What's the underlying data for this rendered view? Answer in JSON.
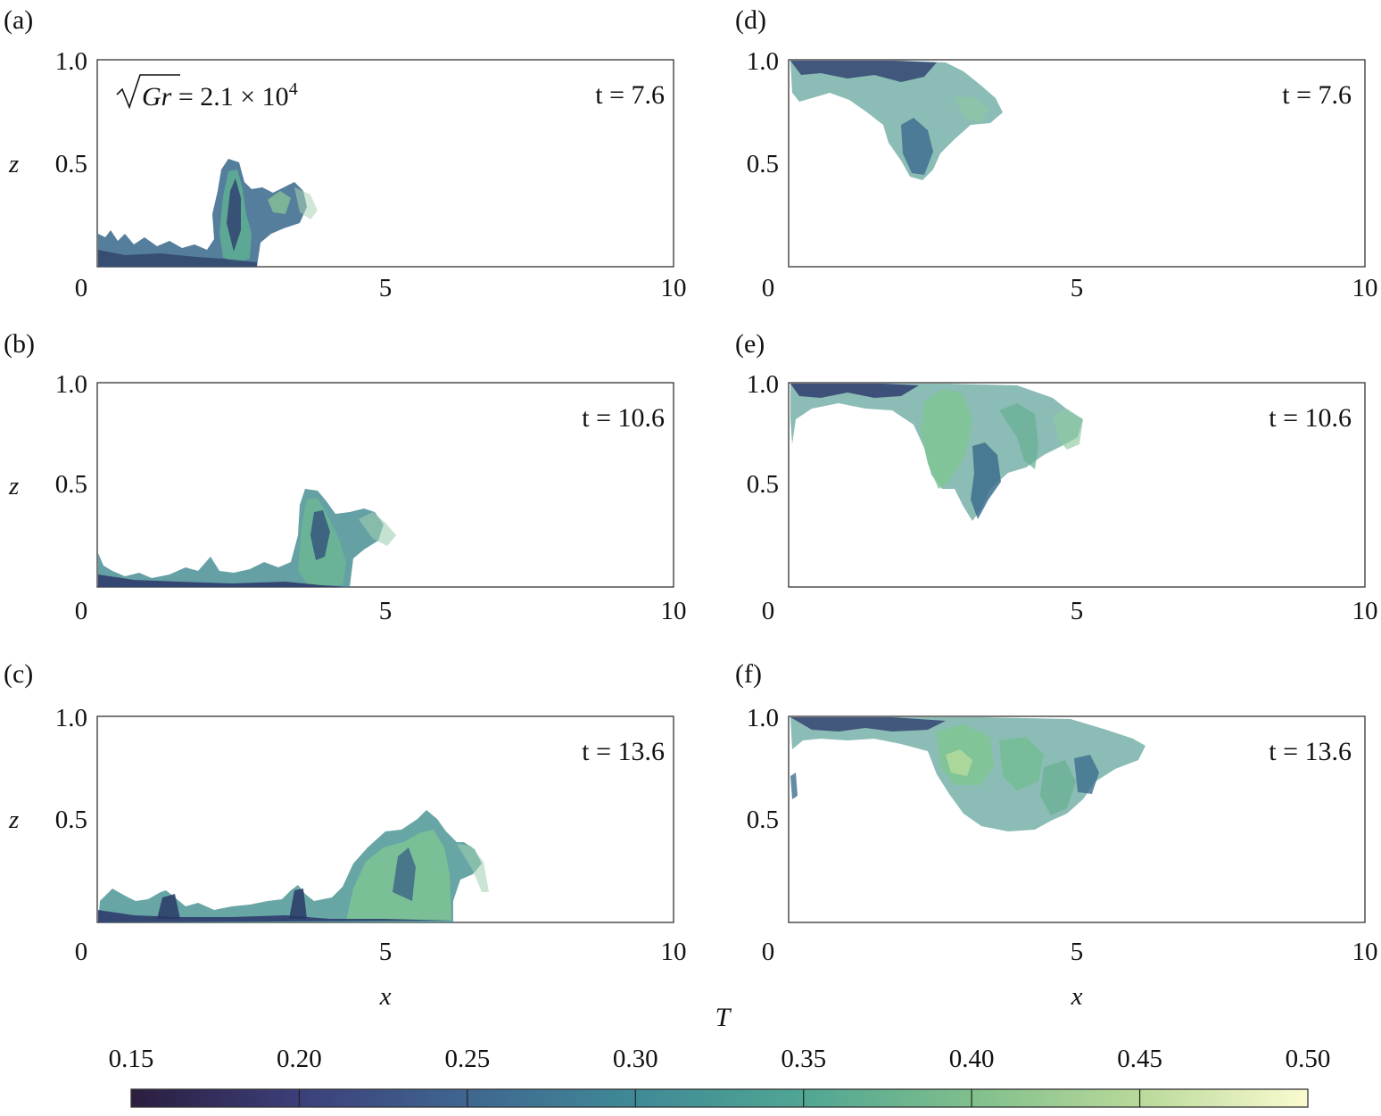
{
  "figure": {
    "colorbar": {
      "title": "T",
      "ticks": [
        "0.15",
        "0.20",
        "0.25",
        "0.30",
        "0.35",
        "0.40",
        "0.45",
        "0.50"
      ],
      "colormap_stops": [
        "#2b1e3e",
        "#3b3f7a",
        "#3f6690",
        "#3f8a96",
        "#4fa693",
        "#7fbf8c",
        "#b9d99a",
        "#fbfbd0"
      ]
    },
    "gr_annotation": {
      "sqrt_symbol": "√",
      "symbol": "Gr",
      "text": " = 2.1 × 10",
      "exponent": "4"
    },
    "panels": [
      {
        "label": "(a)",
        "letter": "a",
        "time": "t = 7.6"
      },
      {
        "label": "(b)",
        "letter": "b",
        "time": "t = 10.6"
      },
      {
        "label": "(c)",
        "letter": "c",
        "time": "t = 13.6"
      },
      {
        "label": "(d)",
        "letter": "d",
        "time": "t = 7.6"
      },
      {
        "label": "(e)",
        "letter": "e",
        "time": "t = 10.6"
      },
      {
        "label": "(f)",
        "letter": "f",
        "time": "t = 13.6"
      }
    ]
  },
  "chart_data": {
    "type": "heatmap",
    "description_quantity": "T",
    "xlabel": "x",
    "ylabel": "z",
    "xlim": [
      0,
      10
    ],
    "ylim": [
      0,
      1.0
    ],
    "x_ticks": [
      "0",
      "5",
      "10"
    ],
    "y_ticks": [
      "0.5",
      "1.0"
    ],
    "color_range": [
      0.15,
      0.5
    ],
    "panels": [
      {
        "id": "a",
        "time": 7.6,
        "location": "bottom",
        "front_x": 3.9,
        "max_z": 0.52
      },
      {
        "id": "b",
        "time": 10.6,
        "location": "bottom",
        "front_x": 5.2,
        "max_z": 0.48
      },
      {
        "id": "c",
        "time": 13.6,
        "location": "bottom",
        "front_x": 6.8,
        "max_z": 0.55
      },
      {
        "id": "d",
        "time": 7.6,
        "location": "top",
        "front_x": 3.8,
        "min_z": 0.42
      },
      {
        "id": "e",
        "time": 10.6,
        "location": "top",
        "front_x": 5.2,
        "min_z": 0.32
      },
      {
        "id": "f",
        "time": 13.6,
        "location": "top",
        "front_x": 6.2,
        "min_z": 0.45
      }
    ]
  }
}
